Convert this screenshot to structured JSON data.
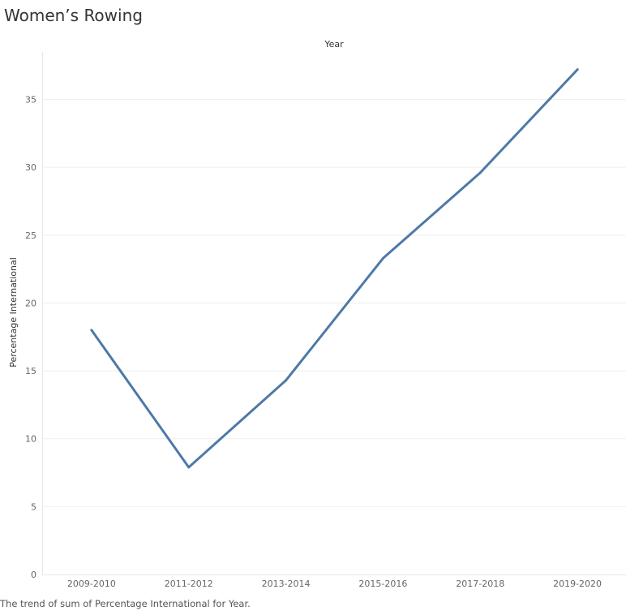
{
  "title": "Women’s Rowing",
  "caption": "The trend of sum of Percentage International for Year.",
  "chart_data": {
    "type": "line",
    "title": "Women’s Rowing",
    "xlabel": "Year",
    "ylabel": "Percentage International",
    "categories": [
      "2009-2010",
      "2011-2012",
      "2013-2014",
      "2015-2016",
      "2017-2018",
      "2019-2020"
    ],
    "series": [
      {
        "values": [
          18.0,
          7.9,
          14.3,
          23.3,
          29.6,
          37.2
        ],
        "color": "#4e79a7"
      }
    ],
    "ylim": [
      0,
      38.5
    ],
    "yticks": [
      0,
      5,
      10,
      15,
      20,
      25,
      30,
      35
    ],
    "grid": true,
    "legend": "none"
  }
}
